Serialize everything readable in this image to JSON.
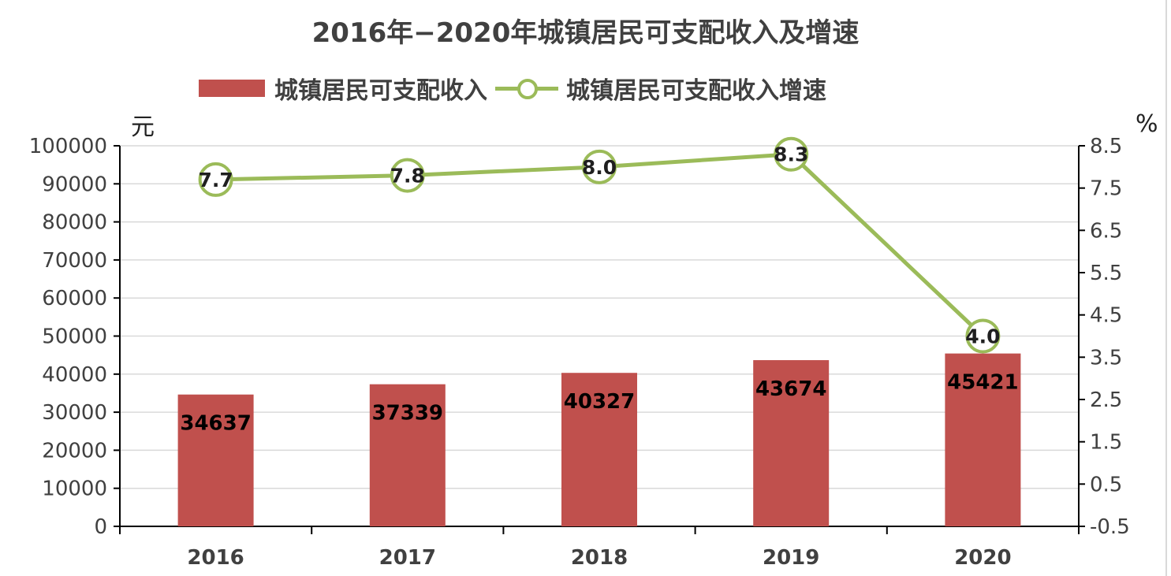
{
  "chart_data": {
    "type": "bar+line",
    "title": "2016年−2020年城镇居民可支配收入及增速",
    "categories": [
      "2016",
      "2017",
      "2018",
      "2019",
      "2020"
    ],
    "series": [
      {
        "name": "城镇居民可支配收入",
        "type": "bar",
        "axis": "left",
        "values": [
          34637,
          37339,
          40327,
          43674,
          45421
        ],
        "labels": [
          "34637",
          "37339",
          "40327",
          "43674",
          "45421"
        ],
        "color": "#c0504d"
      },
      {
        "name": "城镇居民可支配收入增速",
        "type": "line",
        "axis": "right",
        "values": [
          7.7,
          7.8,
          8.0,
          8.3,
          4.0
        ],
        "labels": [
          "7.7",
          "7.8",
          "8.0",
          "8.3",
          "4.0"
        ],
        "color": "#9bbb59"
      }
    ],
    "y_left": {
      "unit": "元",
      "min": 0,
      "max": 100000,
      "ticks": [
        "0",
        "10000",
        "20000",
        "30000",
        "40000",
        "50000",
        "60000",
        "70000",
        "80000",
        "90000",
        "100000"
      ]
    },
    "y_right": {
      "unit": "%",
      "min": -0.5,
      "max": 8.5,
      "ticks": [
        "-0.5",
        "0.5",
        "1.5",
        "2.5",
        "3.5",
        "4.5",
        "5.5",
        "6.5",
        "7.5",
        "8.5"
      ]
    },
    "grid": true,
    "legend_position": "top"
  }
}
